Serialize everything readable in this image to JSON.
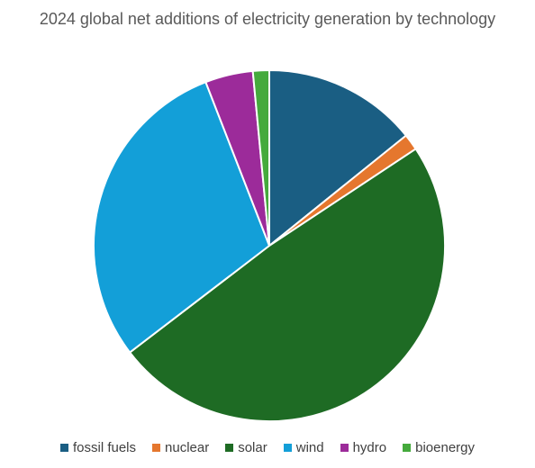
{
  "chart_data": {
    "type": "pie",
    "title": "2024 global net additions of electricity generation by technology",
    "categories": [
      "fossil fuels",
      "nuclear",
      "solar",
      "wind",
      "hydro",
      "bioenergy"
    ],
    "values": [
      14.2,
      1.5,
      48.9,
      29.5,
      4.4,
      1.5
    ],
    "colors": [
      "#1a5e83",
      "#e5772e",
      "#1e6b24",
      "#139fd8",
      "#9c2b9a",
      "#45aa3c"
    ],
    "legend_position": "bottom",
    "start_angle": "12 o'clock, clockwise"
  }
}
